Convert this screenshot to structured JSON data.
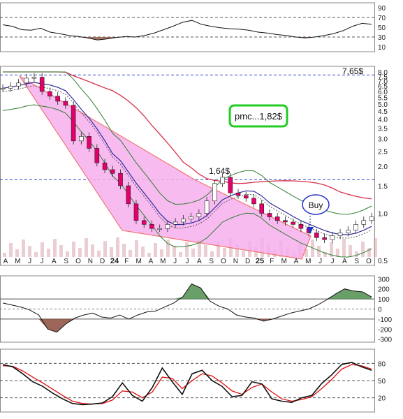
{
  "colors": {
    "up_candle": "#ffffff",
    "down_candle": "#e4006a",
    "wedge_fill": "#f7b0ee",
    "wedge_border": "#f25c5c",
    "ma_short": "#2c2c9c",
    "ma_long": "#d9304a",
    "bollinger": "#2e7d32",
    "level_line": "#3344cc",
    "pmc_box": "#22cc22",
    "buy_marker": "#2233cc",
    "osc_positive": "#4f8f4f",
    "osc_negative": "#8b4b3b",
    "stoch_k": "#111111",
    "stoch_d": "#e01010",
    "volume": "#d9a5ad"
  },
  "annotations": {
    "pmc_label": "pmc...1,82$",
    "buy_label": "Buy",
    "level_top_label": "7,65$",
    "level_mid_label": "1,64$"
  },
  "chart_data": [
    {
      "type": "line",
      "yticks": [
        "90",
        "70",
        "50",
        "30",
        "10"
      ],
      "ylim": [
        0,
        100
      ],
      "reference_levels": [
        70,
        30
      ],
      "values": [
        55,
        52,
        45,
        44,
        48,
        40,
        37,
        33,
        31,
        28,
        24,
        26,
        29,
        31,
        30,
        33,
        38,
        45,
        52,
        60,
        64,
        56,
        52,
        49,
        47,
        46,
        44,
        40,
        38,
        35,
        33,
        30,
        28,
        30,
        33,
        37,
        43,
        52,
        58,
        56
      ]
    },
    {
      "type": "candlestick",
      "scale": "log",
      "ylim": [
        0.5,
        8.0
      ],
      "yticks": [
        "8.0",
        "7.5",
        "7.0",
        "6.5",
        "6.0",
        "5.5",
        "5.0",
        "4.5",
        "4.0",
        "3.5",
        "3.0",
        "2.5",
        "2.0",
        "1.5",
        "1.0",
        "0.5"
      ],
      "x_tick_labels": [
        "A",
        "M",
        "J",
        "J",
        "A",
        "S",
        "O",
        "N",
        "D",
        "24",
        "F",
        "M",
        "A",
        "M",
        "J",
        "J",
        "A",
        "S",
        "O",
        "N",
        "D",
        "25",
        "F",
        "M",
        "A",
        "M",
        "J",
        "J",
        "A",
        "S",
        "O"
      ],
      "price_levels": [
        7.65,
        1.64
      ],
      "annotation_price": 1.82,
      "closes": [
        6.3,
        6.5,
        6.8,
        7.3,
        7.4,
        6.0,
        5.6,
        5.2,
        4.9,
        2.9,
        3.1,
        2.6,
        2.1,
        1.9,
        1.8,
        1.5,
        1.15,
        0.9,
        0.85,
        0.8,
        0.8,
        0.85,
        0.88,
        0.92,
        0.95,
        1.0,
        1.2,
        1.55,
        1.7,
        1.35,
        1.3,
        1.25,
        1.15,
        1.0,
        0.95,
        0.9,
        0.88,
        0.85,
        0.8,
        0.75,
        0.7,
        0.68,
        0.72,
        0.75,
        0.78,
        0.85,
        0.9,
        0.95
      ]
    },
    {
      "type": "area",
      "yticks": [
        "300",
        "200",
        "100",
        "0",
        "-100",
        "-200",
        "-300"
      ],
      "ylim": [
        -330,
        330
      ],
      "reference_levels": [
        100,
        -100
      ],
      "values": [
        60,
        40,
        20,
        -10,
        -60,
        -200,
        -230,
        -150,
        -90,
        -60,
        -40,
        -80,
        -90,
        -60,
        -100,
        -60,
        -30,
        -20,
        20,
        60,
        120,
        250,
        210,
        80,
        30,
        0,
        -60,
        -80,
        -90,
        -120,
        -100,
        -70,
        -40,
        -20,
        0,
        40,
        90,
        150,
        200,
        180,
        170,
        120
      ]
    },
    {
      "type": "line",
      "yticks": [
        "80",
        "50",
        "20"
      ],
      "ylim": [
        0,
        100
      ],
      "reference_levels": [
        80,
        50,
        20
      ],
      "series": [
        {
          "values": [
            78,
            74,
            62,
            48,
            40,
            28,
            18,
            10,
            8,
            9,
            11,
            22,
            46,
            24,
            14,
            38,
            72,
            48,
            26,
            62,
            68,
            50,
            40,
            22,
            24,
            48,
            44,
            18,
            14,
            12,
            20,
            24,
            45,
            60,
            78,
            82,
            74,
            68
          ]
        },
        {
          "values": [
            76,
            75,
            67,
            56,
            46,
            35,
            24,
            14,
            10,
            9,
            10,
            16,
            32,
            30,
            20,
            30,
            56,
            54,
            36,
            50,
            62,
            58,
            46,
            32,
            26,
            38,
            44,
            30,
            18,
            14,
            17,
            22,
            36,
            52,
            70,
            78,
            76,
            70
          ]
        }
      ]
    }
  ]
}
